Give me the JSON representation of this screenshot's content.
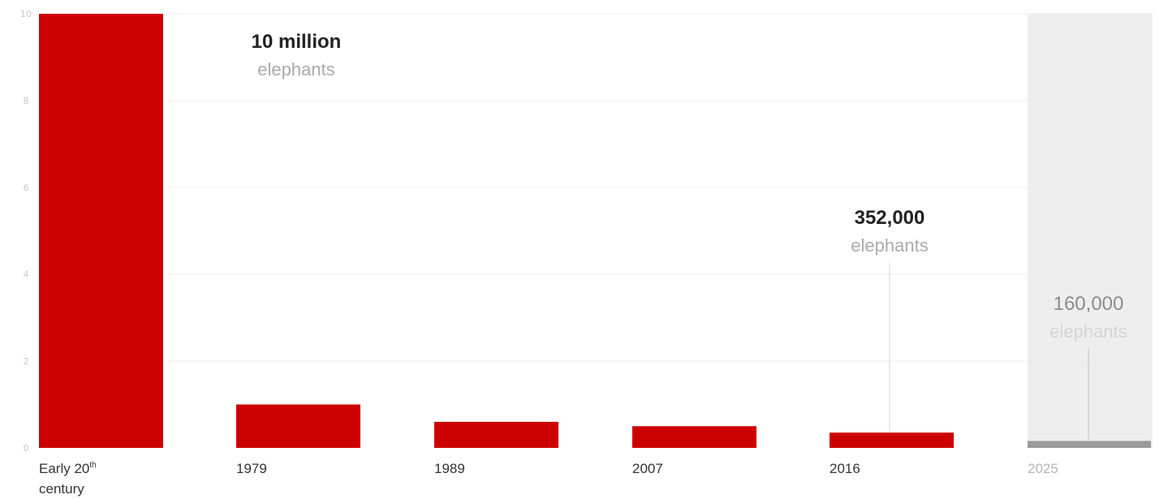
{
  "chart_data": {
    "type": "bar",
    "title": "",
    "xlabel": "",
    "ylabel": "",
    "ylim": [
      0,
      10
    ],
    "yticks": [
      "0",
      "2",
      "4",
      "6",
      "8",
      "10"
    ],
    "grid": true,
    "categories": [
      {
        "label": "Early 20",
        "sup": "th",
        "line2": "century",
        "projected": false
      },
      {
        "label": "1979",
        "sup": "",
        "line2": "",
        "projected": false
      },
      {
        "label": "1989",
        "sup": "",
        "line2": "",
        "projected": false
      },
      {
        "label": "2007",
        "sup": "",
        "line2": "",
        "projected": false
      },
      {
        "label": "2016",
        "sup": "",
        "line2": "",
        "projected": false
      },
      {
        "label": "2025",
        "sup": "",
        "line2": "",
        "projected": true
      }
    ],
    "series": [
      {
        "values": [
          10,
          1.0,
          0.6,
          0.5,
          0.352,
          0.16
        ]
      }
    ],
    "annotations": [
      {
        "index": 0,
        "value": "10 million",
        "unit": "elephants",
        "leader": false
      },
      {
        "index": 4,
        "value": "352,000",
        "unit": "elephants",
        "leader": true
      },
      {
        "index": 5,
        "value": "160,000",
        "unit": "elephants",
        "leader": true
      }
    ],
    "colors": {
      "bar": "#cc0000",
      "projected_bar": "#999999",
      "projected_band": "#eeeeee",
      "grid": "#ececec"
    }
  }
}
